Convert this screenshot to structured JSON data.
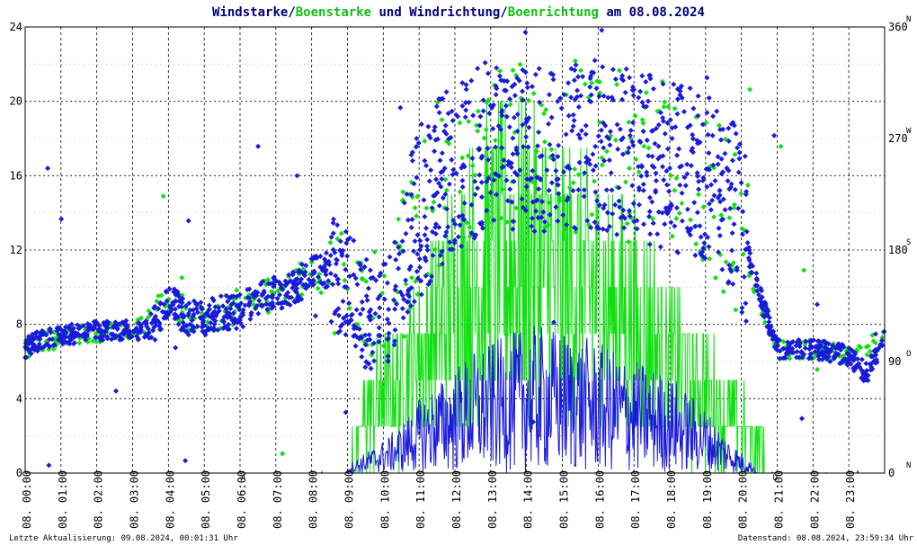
{
  "title": {
    "part1": "Windstarke",
    "slash1": "/",
    "part2": "Boenstarke",
    "part3": " und ",
    "part4": "Windrichtung",
    "slash2": "/",
    "part5": "Boenrichtung",
    "part6": " am 08.08.2024"
  },
  "colors": {
    "wind": "#1a1adc",
    "gust": "#10e010",
    "title_dark": "#000080",
    "grid": "#000000",
    "marker": "#ff0000"
  },
  "footer": {
    "left": "Letzte Aktualisierung: 09.08.2024, 00:01:31 Uhr",
    "right": "Datenstand: 08.08.2024, 23:59:34 Uhr"
  },
  "chart_data": {
    "type": "scatter",
    "x_unit": "hour",
    "xlim": [
      0,
      24
    ],
    "ylim_left": [
      0,
      24
    ],
    "yticks_left": [
      "0",
      "4",
      "8",
      "12",
      "16",
      "20",
      "24"
    ],
    "ylim_right": [
      0,
      360
    ],
    "yticks_right": [
      "0",
      "90",
      "180",
      "270",
      "360"
    ],
    "right_dir_labels": [
      "N",
      "O",
      "S",
      "W",
      "N"
    ],
    "xtick_labels": [
      "08. 00:00",
      "08. 01:00",
      "08. 02:00",
      "08. 03:00",
      "08. 04:00",
      "08. 05:00",
      "08. 06:00",
      "08. 07:00",
      "08. 08:00",
      "08. 09:00",
      "08. 10:00",
      "08. 11:00",
      "08. 12:00",
      "08. 13:00",
      "08. 14:00",
      "08. 15:00",
      "08. 16:00",
      "08. 17:00",
      "08. 18:00",
      "08. 19:00",
      "08. 20:00",
      "08. 21:00",
      "08. 22:00",
      "08. 23:00"
    ],
    "event_markers": [
      {
        "hour": 6.1,
        "label": "A"
      },
      {
        "hour": 20.95,
        "label": "U"
      }
    ],
    "grid": true,
    "series": [
      {
        "name": "Windstarke",
        "axis": "left",
        "style": "line",
        "profile_hours": [
          0,
          1,
          2,
          3,
          4,
          5,
          6,
          7,
          8,
          9,
          10,
          10.5,
          11,
          11.5,
          12,
          12.5,
          13,
          13.5,
          14,
          14.5,
          15,
          15.5,
          16,
          16.5,
          17,
          17.5,
          18,
          18.5,
          19,
          19.5,
          20,
          20.5,
          21,
          22,
          23,
          24
        ],
        "profile_values": [
          0,
          0,
          0,
          0,
          0,
          0,
          0,
          0,
          0,
          0.2,
          0.8,
          1.2,
          1.8,
          2.2,
          2.6,
          3.0,
          3.2,
          3.4,
          3.6,
          3.6,
          3.5,
          3.4,
          3.2,
          3.0,
          2.8,
          2.6,
          2.4,
          2.0,
          1.6,
          1.0,
          0.5,
          0.1,
          0,
          0,
          0.1,
          0
        ]
      },
      {
        "name": "Boenstarke",
        "axis": "left",
        "style": "line",
        "profile_hours": [
          0,
          1,
          2,
          3,
          4,
          5,
          6,
          7,
          8,
          9,
          9.5,
          10,
          10.5,
          11,
          11.5,
          12,
          12.5,
          13,
          13.5,
          14,
          14.5,
          15,
          15.5,
          16,
          16.5,
          17,
          17.5,
          18,
          18.5,
          19,
          19.5,
          20,
          20.5,
          21,
          22,
          23,
          24
        ],
        "profile_values": [
          0.5,
          0,
          0,
          0,
          0.5,
          0,
          0.5,
          0,
          0.5,
          0.3,
          3.0,
          4.5,
          5.0,
          6.5,
          8.0,
          9.5,
          10.5,
          11.5,
          12.0,
          12.0,
          11.5,
          11.0,
          10.5,
          10.0,
          9.0,
          8.5,
          7.5,
          6.5,
          5.0,
          4.5,
          3.5,
          2.5,
          1.5,
          0.3,
          0,
          0.5,
          0.5
        ]
      },
      {
        "name": "Windrichtung",
        "axis": "right",
        "style": "diamond",
        "profile_hours": [
          0,
          0.2,
          0.5,
          1,
          2,
          3,
          3.5,
          4,
          4.5,
          5,
          5.5,
          6,
          6.5,
          7,
          7.5,
          8,
          8.5,
          9,
          9.5,
          10,
          10.5,
          11,
          11.5,
          12,
          13,
          14,
          15,
          16,
          17,
          18,
          19,
          19.5,
          20,
          20.3,
          20.5,
          21,
          22,
          23,
          23.5,
          24
        ],
        "profile_values": [
          100,
          105,
          108,
          110,
          115,
          115,
          115,
          140,
          125,
          125,
          130,
          130,
          140,
          145,
          150,
          160,
          165,
          150,
          130,
          125,
          160,
          210,
          230,
          250,
          265,
          265,
          265,
          265,
          255,
          250,
          240,
          230,
          200,
          165,
          145,
          100,
          100,
          95,
          80,
          110
        ]
      },
      {
        "name": "Boenrichtung",
        "axis": "right",
        "style": "diamond",
        "profile_hours": [
          0,
          1,
          3,
          4,
          5,
          6,
          7,
          8,
          9,
          10,
          11,
          12,
          13,
          14,
          15,
          16,
          17,
          18,
          19,
          20,
          21,
          22,
          23,
          24
        ],
        "profile_values": [
          100,
          110,
          115,
          135,
          125,
          135,
          145,
          160,
          150,
          135,
          210,
          250,
          265,
          265,
          265,
          260,
          255,
          250,
          235,
          180,
          100,
          100,
          95,
          110
        ]
      }
    ]
  }
}
